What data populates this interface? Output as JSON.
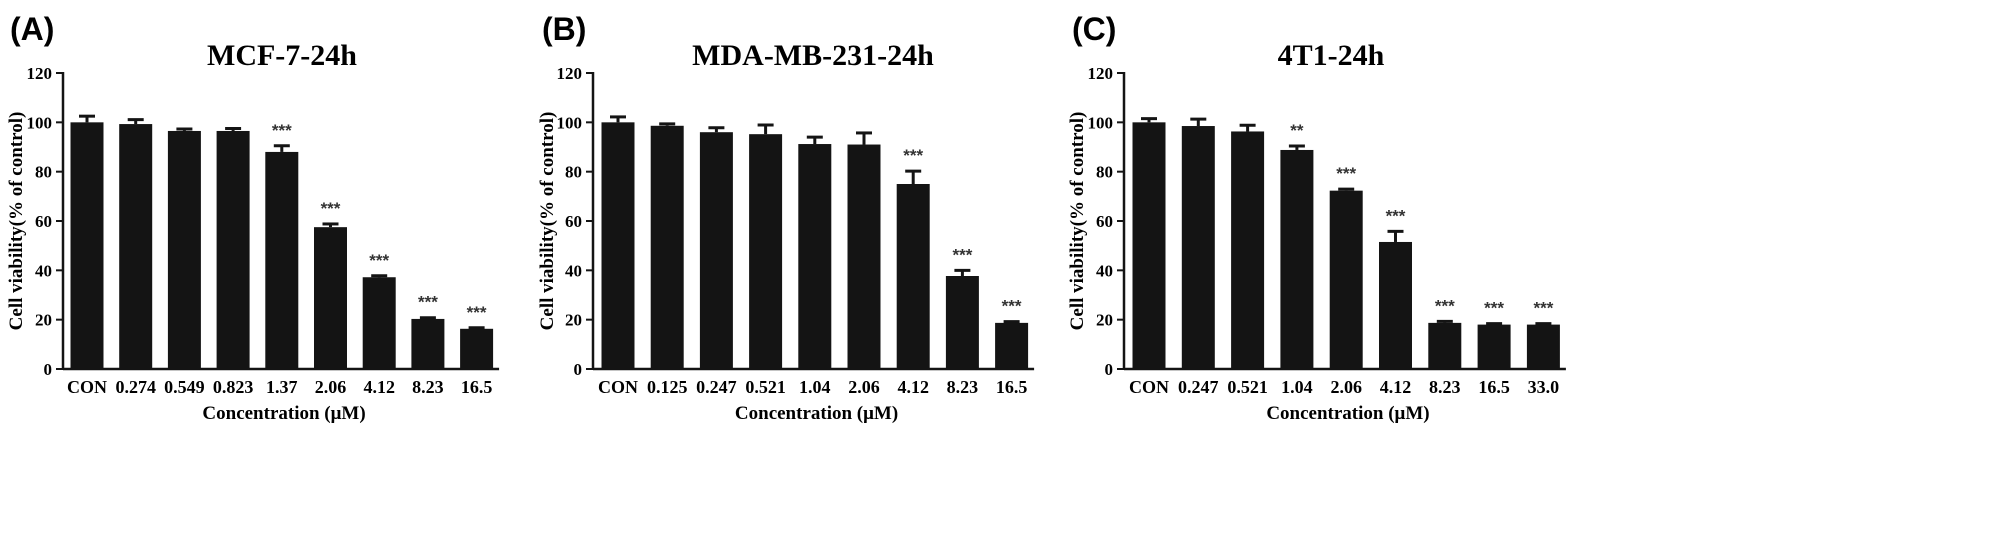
{
  "chart_data": [
    {
      "type": "bar",
      "panel": "(A)",
      "title": "MCF-7-24h",
      "xlabel": "Concentration (μM)",
      "ylabel": "Cell viability(% of control)",
      "ylim": [
        0,
        120
      ],
      "yticks": [
        0,
        20,
        40,
        60,
        80,
        100,
        120
      ],
      "categories": [
        "CON",
        "0.274",
        "0.549",
        "0.823",
        "1.37",
        "2.06",
        "4.12",
        "8.23",
        "16.5"
      ],
      "values": [
        100,
        99.3,
        96.5,
        96.5,
        88,
        57.5,
        37.2,
        20.3,
        16.3
      ],
      "errors": [
        2.5,
        1.8,
        0.8,
        1.0,
        2.5,
        1.3,
        0.6,
        0.5,
        0.4
      ],
      "significance": [
        "",
        "",
        "",
        "",
        "***",
        "***",
        "***",
        "***",
        "***"
      ],
      "legend": "none",
      "grid": false
    },
    {
      "type": "bar",
      "panel": "(B)",
      "title": "MDA-MB-231-24h",
      "xlabel": "Concentration (μM)",
      "ylabel": "Cell viability(% of control)",
      "ylim": [
        0,
        120
      ],
      "yticks": [
        0,
        20,
        40,
        60,
        80,
        100,
        120
      ],
      "categories": [
        "CON",
        "0.125",
        "0.247",
        "0.521",
        "1.04",
        "2.06",
        "4.12",
        "8.23",
        "16.5"
      ],
      "values": [
        100,
        98.6,
        96,
        95.2,
        91.2,
        91,
        75,
        37.7,
        18.7
      ],
      "errors": [
        2.2,
        0.8,
        1.8,
        3.7,
        2.8,
        4.7,
        5.2,
        2.3,
        0.5
      ],
      "significance": [
        "",
        "",
        "",
        "",
        "",
        "",
        "***",
        "***",
        "***"
      ],
      "legend": "none",
      "grid": false
    },
    {
      "type": "bar",
      "panel": "(C)",
      "title": "4T1-24h",
      "xlabel": "Concentration (μM)",
      "ylabel": "Cell viability(% of control)",
      "ylim": [
        0,
        120
      ],
      "yticks": [
        0,
        20,
        40,
        60,
        80,
        100,
        120
      ],
      "categories": [
        "CON",
        "0.247",
        "0.521",
        "1.04",
        "2.06",
        "4.12",
        "8.23",
        "16.5",
        "33.0"
      ],
      "values": [
        100,
        98.5,
        96.3,
        88.8,
        72.3,
        51.5,
        18.7,
        18,
        18
      ],
      "errors": [
        1.5,
        2.8,
        2.5,
        1.6,
        0.6,
        4.3,
        0.6,
        0.4,
        0.4
      ],
      "significance": [
        "",
        "",
        "",
        "**",
        "***",
        "***",
        "***",
        "***",
        "***"
      ],
      "legend": "none",
      "grid": false
    }
  ]
}
